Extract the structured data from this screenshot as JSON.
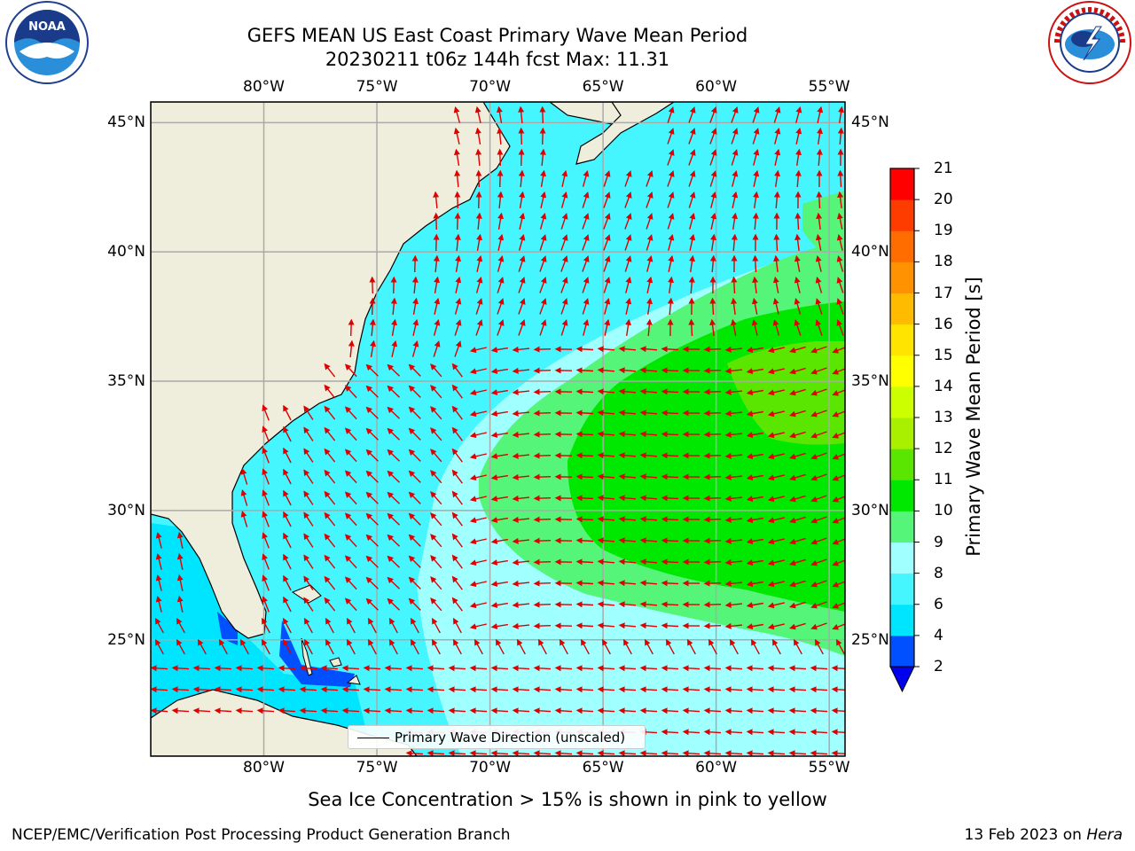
{
  "title": {
    "line1": "GEFS MEAN US East Coast Primary Wave Mean Period",
    "line2": "20230211 t06z 144h fcst   Max: 11.31"
  },
  "axes": {
    "lon_labels": [
      "80°W",
      "75°W",
      "70°W",
      "65°W",
      "60°W",
      "55°W"
    ],
    "lon_values": [
      -80,
      -75,
      -70,
      -65,
      -60,
      -55
    ],
    "lat_labels": [
      "45°N",
      "40°N",
      "35°N",
      "30°N",
      "25°N"
    ],
    "lat_values": [
      45,
      40,
      35,
      30,
      25
    ],
    "lon_range": [
      -85,
      -54.3
    ],
    "lat_range": [
      20.5,
      45.8
    ],
    "grid": true
  },
  "colorbar": {
    "label": "Primary Wave Mean Period [s]",
    "ticks": [
      "2",
      "4",
      "6",
      "8",
      "9",
      "10",
      "11",
      "12",
      "13",
      "14",
      "15",
      "16",
      "17",
      "18",
      "19",
      "20",
      "21"
    ],
    "colors": [
      "#0050ff",
      "#00e5ff",
      "#45f5ff",
      "#a0ffff",
      "#55f57a",
      "#00e800",
      "#5ae600",
      "#a8f000",
      "#ccff00",
      "#ffff00",
      "#ffe400",
      "#ffbb00",
      "#ff9200",
      "#ff6d00",
      "#ff3c00",
      "#ff0000"
    ],
    "extend_color": "#0000ee"
  },
  "legend": {
    "label": "Primary Wave Direction (unscaled)"
  },
  "caption": "Sea Ice Concentration > 15% is shown in pink to yellow",
  "credit": "NCEP/EMC/Verification Post Processing Product Generation Branch",
  "stamp": {
    "date": "13 Feb 2023 on",
    "machine": "Hera"
  },
  "logos": [
    "noaa-logo",
    "nws-logo"
  ],
  "colors": {
    "land": "#efeedc",
    "arrow": "#e00000",
    "grid": "#aaaaaa"
  }
}
